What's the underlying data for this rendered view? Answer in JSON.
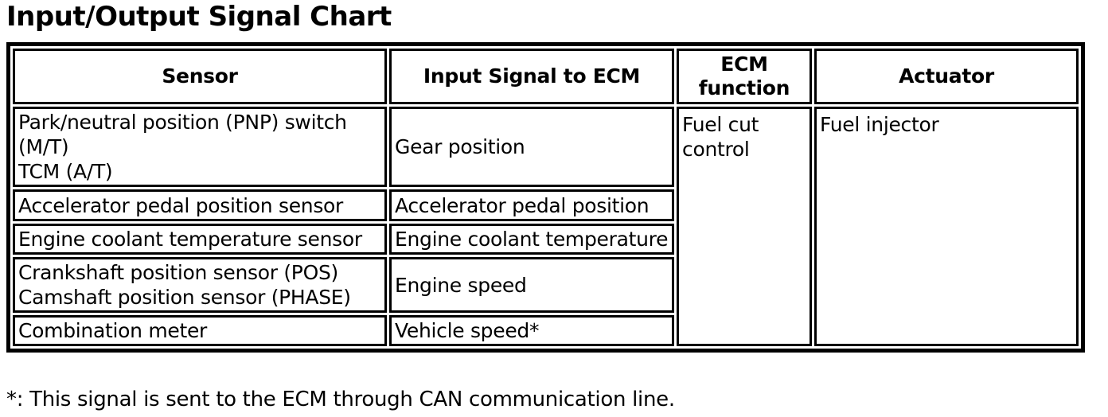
{
  "page": {
    "title": "Input/Output Signal Chart",
    "footnote": "*: This signal is sent to the ECM through CAN communication line."
  },
  "colors": {
    "text": "#000000",
    "border": "#000000",
    "background": "#ffffff"
  },
  "table": {
    "headers": {
      "sensor": "Sensor",
      "input_signal": "Input Signal to ECM",
      "ecm_function": "ECM\nfunction",
      "actuator": "Actuator"
    },
    "rows": [
      {
        "sensor": "Park/neutral position (PNP) switch\n(M/T)\nTCM (A/T)",
        "input_signal": "Gear position"
      },
      {
        "sensor": "Accelerator pedal position sensor",
        "input_signal": "Accelerator pedal position"
      },
      {
        "sensor": "Engine coolant temperature sensor",
        "input_signal": "Engine coolant temperature"
      },
      {
        "sensor": "Crankshaft position sensor (POS)\nCamshaft position sensor (PHASE)",
        "input_signal": "Engine speed"
      },
      {
        "sensor": "Combination meter",
        "input_signal": "Vehicle speed*"
      }
    ],
    "ecm_function_value": "Fuel cut\ncontrol",
    "actuator_value": "Fuel injector"
  }
}
